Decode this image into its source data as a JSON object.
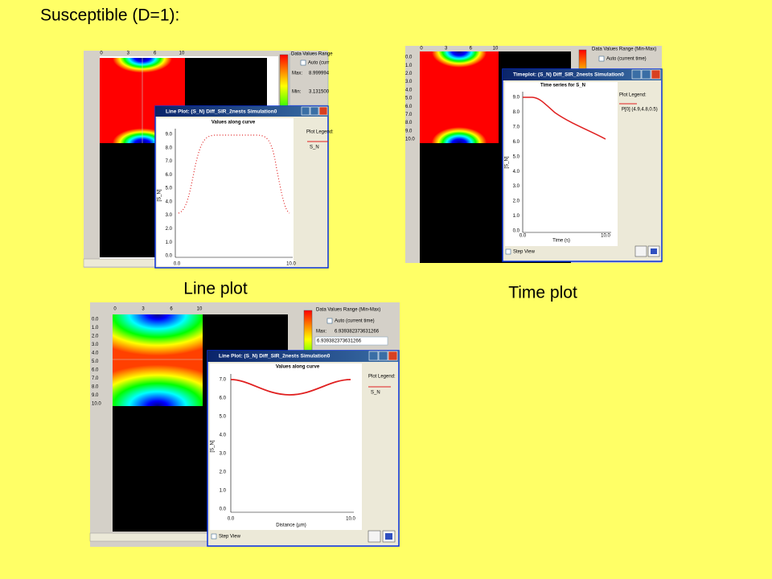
{
  "title": "Susceptible (D=1):",
  "captions": {
    "line_plot": "Line plot",
    "time_plot": "Time plot"
  },
  "panel1": {
    "top_axis": [
      "0",
      "3",
      "6",
      "10"
    ],
    "range": {
      "title": "Data Values Range",
      "auto": "Auto (curr",
      "max_label": "Max:",
      "max_value": "8.999994",
      "min_label": "Min:",
      "min_value": "3.131500"
    },
    "window": {
      "title": "Line Plot: (S_N) Diff_SIR_2nests Simulation0",
      "plot_title": "Values along curve",
      "yticks": [
        "9.0",
        "8.0",
        "7.0",
        "6.0",
        "5.0",
        "4.0",
        "3.0",
        "2.0",
        "1.0",
        "0.0"
      ],
      "xticks": [
        "0.0",
        "10.0"
      ],
      "ylabel": "[S_N]",
      "legend_title": "Plot Legend:",
      "legend_item": "S_N"
    }
  },
  "panel2": {
    "top_axis": [
      "0",
      "3",
      "6",
      "10"
    ],
    "left_axis": [
      "0.0",
      "1.0",
      "2.0",
      "3.0",
      "4.0",
      "5.0",
      "6.0",
      "7.0",
      "8.0",
      "9.0",
      "10.0"
    ],
    "range": {
      "title": "Data Values Range (Min-Max)",
      "auto": "Auto (current time)"
    },
    "window": {
      "title": "Timeplot: (S_N) Diff_SIR_2nests Simulation0",
      "plot_title": "Time series for S_N",
      "yticks": [
        "9.0",
        "8.0",
        "7.0",
        "6.0",
        "5.0",
        "4.0",
        "3.0",
        "2.0",
        "1.0",
        "0.0"
      ],
      "xticks": [
        "0.0",
        "10.0"
      ],
      "xlabel": "Time (s)",
      "ylabel": "[S_N]",
      "legend_title": "Plot Legend:",
      "legend_item": "P[0] (4.9,4.8,0.5)",
      "step_view": "Step View"
    }
  },
  "panel3": {
    "top_axis": [
      "0",
      "3",
      "6",
      "10"
    ],
    "left_axis": [
      "0.0",
      "1.0",
      "2.0",
      "3.0",
      "4.0",
      "5.0",
      "6.0",
      "7.0",
      "8.0",
      "9.0",
      "10.0"
    ],
    "range": {
      "title": "Data Values Range (Min-Max)",
      "auto": "Auto (current time)",
      "max_label": "Max:",
      "max_value": "6.939382373631266",
      "max_field": "6.939382373631266"
    },
    "window": {
      "title": "Line Plot: (S_N) Diff_SIR_2nests Simulation0",
      "plot_title": "Values along curve",
      "yticks": [
        "7.0",
        "6.0",
        "5.0",
        "4.0",
        "3.0",
        "2.0",
        "1.0",
        "0.0"
      ],
      "xticks": [
        "0.0",
        "10.0"
      ],
      "xlabel": "Distance (µm)",
      "ylabel": "[S_N]",
      "legend_title": "Plot Legend:",
      "legend_item": "S_N",
      "step_view": "Step View"
    }
  }
}
